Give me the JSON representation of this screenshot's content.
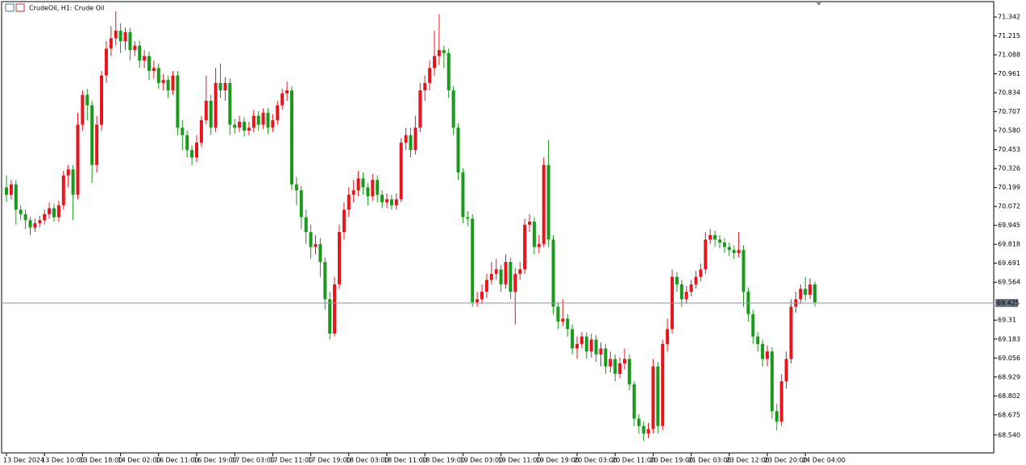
{
  "chart_data": {
    "type": "candlestick",
    "title": "CrudeOil, H1:  Crude Oil",
    "categories": [
      "13 Dec 2024",
      null,
      null,
      null,
      null,
      null,
      null,
      null,
      "13 Dec 10:00",
      null,
      null,
      null,
      null,
      null,
      null,
      null,
      "13 Dec 18:00",
      null,
      null,
      null,
      null,
      null,
      null,
      null,
      "14 Dec 02:00",
      null,
      null,
      null,
      null,
      null,
      null,
      null,
      "16 Dec 11:00",
      null,
      null,
      null,
      null,
      null,
      null,
      null,
      "16 Dec 19:00",
      null,
      null,
      null,
      null,
      null,
      null,
      null,
      "17 Dec 03:00",
      null,
      null,
      null,
      null,
      null,
      null,
      null,
      "17 Dec 11:00",
      null,
      null,
      null,
      null,
      null,
      null,
      null,
      "17 Dec 19:00",
      null,
      null,
      null,
      null,
      null,
      null,
      null,
      "18 Dec 03:00",
      null,
      null,
      null,
      null,
      null,
      null,
      null,
      "18 Dec 11:00",
      null,
      null,
      null,
      null,
      null,
      null,
      null,
      "18 Dec 19:00",
      null,
      null,
      null,
      null,
      null,
      null,
      null,
      "19 Dec 03:00",
      null,
      null,
      null,
      null,
      null,
      null,
      null,
      "19 Dec 11:00",
      null,
      null,
      null,
      null,
      null,
      null,
      null,
      "19 Dec 19:00",
      null,
      null,
      null,
      null,
      null,
      null,
      null,
      "20 Dec 03:00",
      null,
      null,
      null,
      null,
      null,
      null,
      null,
      "20 Dec 11:00",
      null,
      null,
      null,
      null,
      null,
      null,
      null,
      "20 Dec 19:00",
      null,
      null,
      null,
      null,
      null,
      null,
      null,
      "21 Dec 03:00",
      null,
      null,
      null,
      null,
      null,
      null,
      null,
      "23 Dec 12:00",
      null,
      null,
      null,
      null,
      null,
      null,
      null,
      "23 Dec 20:00",
      null,
      null,
      null,
      null,
      null,
      null,
      null,
      "24 Dec 04:00",
      null,
      null
    ],
    "open": [
      70.2,
      70.15,
      70.22,
      70.05,
      70.02,
      69.98,
      69.93,
      69.96,
      69.98,
      70.02,
      70.06,
      70.0,
      70.08,
      70.28,
      70.32,
      70.15,
      70.62,
      70.82,
      70.75,
      70.35,
      70.62,
      70.95,
      71.13,
      71.2,
      71.25,
      71.18,
      71.24,
      71.12,
      71.15,
      71.05,
      71.08,
      70.98,
      71.0,
      70.9,
      70.92,
      70.85,
      70.95,
      70.6,
      70.55,
      70.45,
      70.4,
      70.5,
      70.65,
      70.78,
      70.6,
      70.9,
      70.85,
      70.9,
      70.62,
      70.6,
      70.64,
      70.58,
      70.6,
      70.68,
      70.62,
      70.7,
      70.6,
      70.65,
      70.75,
      70.83,
      70.85,
      70.22,
      70.18,
      70.0,
      69.9,
      69.8,
      69.82,
      69.7,
      69.45,
      69.22,
      69.55,
      69.9,
      70.05,
      70.15,
      70.18,
      70.26,
      70.2,
      70.14,
      70.25,
      70.15,
      70.1,
      70.12,
      70.08,
      70.12,
      70.5,
      70.55,
      70.45,
      70.6,
      70.85,
      70.9,
      71.0,
      71.08,
      71.12,
      71.1,
      70.85,
      70.6,
      70.3,
      70.0,
      69.99,
      69.43,
      69.45,
      69.5,
      69.58,
      69.62,
      69.65,
      69.55,
      69.7,
      69.5,
      69.62,
      69.65,
      69.95,
      69.97,
      69.8,
      69.82,
      70.35,
      69.85,
      69.4,
      69.3,
      69.32,
      69.25,
      69.12,
      69.15,
      69.2,
      69.1,
      69.18,
      69.08,
      69.12,
      69.0,
      69.05,
      68.95,
      69.02,
      69.05,
      68.88,
      68.65,
      68.6,
      68.55,
      68.58,
      69.0,
      68.6,
      69.15,
      69.25,
      69.6,
      69.55,
      69.45,
      69.5,
      69.55,
      69.6,
      69.65,
      69.85,
      69.88,
      69.85,
      69.83,
      69.8,
      69.78,
      69.76,
      69.78,
      69.5,
      69.35,
      69.2,
      69.15,
      69.05,
      69.1,
      68.7,
      68.63,
      68.9,
      69.05,
      69.4,
      69.45,
      69.52,
      69.48,
      69.55
    ],
    "high": [
      70.28,
      70.25,
      70.25,
      70.08,
      70.05,
      70.0,
      69.99,
      70.01,
      70.05,
      70.1,
      70.09,
      70.11,
      70.31,
      70.35,
      70.35,
      70.7,
      70.85,
      70.86,
      70.78,
      70.68,
      70.98,
      71.18,
      71.28,
      71.38,
      71.3,
      71.27,
      71.27,
      71.18,
      71.18,
      71.12,
      71.11,
      71.05,
      71.03,
      70.96,
      70.95,
      70.98,
      70.98,
      70.65,
      70.58,
      70.48,
      70.55,
      70.68,
      70.95,
      70.82,
      71.0,
      71.03,
      70.94,
      70.93,
      70.66,
      70.68,
      70.67,
      70.64,
      70.72,
      70.71,
      70.73,
      70.73,
      70.69,
      70.78,
      70.86,
      70.91,
      70.88,
      70.27,
      70.21,
      70.05,
      69.95,
      69.88,
      69.86,
      69.73,
      69.5,
      69.6,
      69.95,
      70.1,
      70.2,
      70.25,
      70.31,
      70.3,
      70.23,
      70.29,
      70.28,
      70.18,
      70.16,
      70.15,
      70.16,
      70.53,
      70.6,
      70.6,
      70.68,
      70.9,
      70.95,
      71.05,
      71.25,
      71.36,
      71.15,
      71.13,
      70.88,
      70.63,
      70.33,
      70.04,
      70.02,
      69.5,
      69.55,
      69.62,
      69.7,
      69.72,
      69.68,
      69.75,
      69.73,
      69.66,
      69.7,
      69.99,
      70.02,
      70.0,
      69.88,
      70.4,
      70.52,
      69.88,
      69.43,
      69.45,
      69.35,
      69.28,
      69.2,
      69.23,
      69.23,
      69.22,
      69.21,
      69.16,
      69.15,
      69.1,
      69.08,
      69.06,
      69.12,
      69.08,
      68.9,
      68.68,
      68.63,
      68.62,
      69.05,
      69.03,
      69.18,
      69.32,
      69.65,
      69.63,
      69.58,
      69.54,
      69.58,
      69.64,
      69.69,
      69.9,
      69.92,
      69.91,
      69.88,
      69.86,
      69.83,
      69.81,
      69.9,
      69.81,
      69.53,
      69.38,
      69.23,
      69.18,
      69.14,
      69.13,
      68.75,
      68.95,
      69.1,
      69.45,
      69.5,
      69.55,
      69.6,
      69.59,
      69.57
    ],
    "low": [
      70.1,
      70.12,
      69.95,
      69.98,
      69.92,
      69.88,
      69.9,
      69.93,
      69.95,
      69.99,
      69.97,
      69.97,
      70.05,
      70.2,
      69.98,
      70.12,
      70.58,
      70.65,
      70.23,
      70.3,
      70.58,
      70.9,
      71.08,
      71.15,
      71.1,
      71.12,
      71.05,
      71.08,
      71.0,
      71.0,
      70.92,
      70.93,
      70.86,
      70.85,
      70.8,
      70.82,
      70.55,
      70.45,
      70.4,
      70.35,
      70.37,
      70.47,
      70.62,
      70.55,
      70.57,
      70.8,
      70.78,
      70.55,
      70.56,
      70.57,
      70.54,
      70.55,
      70.57,
      70.58,
      70.59,
      70.56,
      70.57,
      70.62,
      70.72,
      70.78,
      70.18,
      70.08,
      69.92,
      69.82,
      69.72,
      69.75,
      69.6,
      69.38,
      69.18,
      69.2,
      69.52,
      69.85,
      70.0,
      70.1,
      70.14,
      70.15,
      70.08,
      70.11,
      70.1,
      70.06,
      70.06,
      70.05,
      70.05,
      70.1,
      70.45,
      70.4,
      70.42,
      70.57,
      70.78,
      70.85,
      70.95,
      71.02,
      71.0,
      70.8,
      70.55,
      70.25,
      69.96,
      69.94,
      69.4,
      69.4,
      69.42,
      69.46,
      69.55,
      69.58,
      69.5,
      69.52,
      69.45,
      69.28,
      69.58,
      69.62,
      69.9,
      69.75,
      69.76,
      69.8,
      69.8,
      69.35,
      69.25,
      69.27,
      69.2,
      69.08,
      69.05,
      69.12,
      69.05,
      69.06,
      69.03,
      69.0,
      68.95,
      68.96,
      68.9,
      68.92,
      68.98,
      68.84,
      68.6,
      68.55,
      68.5,
      68.52,
      68.55,
      68.55,
      68.57,
      69.1,
      69.22,
      69.5,
      69.4,
      69.42,
      69.47,
      69.52,
      69.57,
      69.62,
      69.82,
      69.8,
      69.79,
      69.76,
      69.74,
      69.72,
      69.73,
      69.4,
      69.3,
      69.15,
      69.1,
      69.0,
      69.0,
      68.65,
      68.57,
      68.6,
      68.85,
      69.02,
      69.36,
      69.42,
      69.44,
      69.45,
      69.4
    ],
    "close": [
      70.15,
      70.22,
      70.05,
      70.02,
      69.98,
      69.93,
      69.96,
      69.98,
      70.02,
      70.06,
      70.0,
      70.08,
      70.28,
      70.32,
      70.15,
      70.62,
      70.82,
      70.75,
      70.35,
      70.62,
      70.95,
      71.13,
      71.2,
      71.25,
      71.18,
      71.24,
      71.12,
      71.15,
      71.05,
      71.08,
      70.98,
      71.0,
      70.9,
      70.92,
      70.85,
      70.95,
      70.6,
      70.55,
      70.45,
      70.4,
      70.5,
      70.65,
      70.78,
      70.6,
      70.9,
      70.85,
      70.9,
      70.62,
      70.6,
      70.64,
      70.58,
      70.6,
      70.68,
      70.62,
      70.7,
      70.6,
      70.65,
      70.75,
      70.83,
      70.85,
      70.22,
      70.18,
      70.0,
      69.9,
      69.8,
      69.82,
      69.7,
      69.45,
      69.22,
      69.55,
      69.9,
      70.05,
      70.15,
      70.18,
      70.26,
      70.2,
      70.14,
      70.25,
      70.15,
      70.1,
      70.12,
      70.08,
      70.12,
      70.5,
      70.55,
      70.45,
      70.6,
      70.85,
      70.9,
      71.0,
      71.08,
      71.12,
      71.1,
      70.85,
      70.6,
      70.3,
      70.0,
      69.99,
      69.43,
      69.45,
      69.5,
      69.58,
      69.62,
      69.65,
      69.55,
      69.7,
      69.5,
      69.62,
      69.65,
      69.95,
      69.97,
      69.8,
      69.82,
      70.35,
      69.85,
      69.4,
      69.3,
      69.32,
      69.25,
      69.12,
      69.15,
      69.2,
      69.1,
      69.18,
      69.08,
      69.12,
      69.0,
      69.05,
      68.95,
      69.02,
      69.05,
      68.88,
      68.65,
      68.6,
      68.55,
      68.58,
      69.0,
      68.6,
      69.15,
      69.25,
      69.6,
      69.55,
      69.45,
      69.5,
      69.55,
      69.6,
      69.65,
      69.85,
      69.88,
      69.85,
      69.83,
      69.8,
      69.78,
      69.76,
      69.78,
      69.5,
      69.35,
      69.2,
      69.15,
      69.05,
      69.1,
      68.7,
      68.63,
      68.9,
      69.05,
      69.4,
      69.45,
      69.52,
      69.48,
      69.55,
      69.43
    ],
    "up_color": "#e8161c",
    "down_color": "#1a9a1a",
    "ylim": [
      68.42,
      71.445
    ],
    "yticks": [
      71.342,
      71.215,
      71.088,
      70.961,
      70.834,
      70.707,
      {
        "value": 70.58,
        "label": "70.580"
      },
      70.453,
      70.326,
      70.199,
      70.072,
      69.945,
      69.818,
      69.691,
      69.564,
      69.31,
      69.183,
      69.056,
      68.929,
      68.802,
      68.675,
      {
        "value": 68.54,
        "label": "68.540"
      }
    ],
    "last_price": 69.425
  }
}
